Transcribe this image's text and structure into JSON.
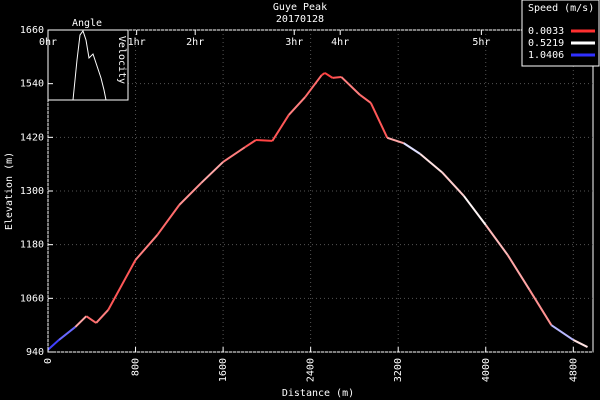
{
  "chart_data": {
    "type": "line",
    "title": "Guye Peak",
    "subtitle": "20170128",
    "x_label": "Distance (m)",
    "y_label": "Elevation (m)",
    "xlim": [
      0,
      4980
    ],
    "xticks": [
      0,
      800,
      1600,
      2400,
      3200,
      4000,
      4800
    ],
    "ylim": [
      940,
      1660
    ],
    "yticks": [
      940,
      1060,
      1180,
      1300,
      1420,
      1540,
      1660
    ],
    "grid": true,
    "time_ticks": [
      {
        "value": 0,
        "label": "0hr"
      },
      {
        "value": 810,
        "label": "1hr"
      },
      {
        "value": 1345,
        "label": "2hr"
      },
      {
        "value": 2250,
        "label": "3hr"
      },
      {
        "value": 2670,
        "label": "4hr"
      },
      {
        "value": 3960,
        "label": "5hr"
      }
    ],
    "inset": {
      "x_label": "Angle",
      "y_label": "Velocity"
    },
    "legend": {
      "title": "Speed (m/s)",
      "position": "top-right",
      "entries": [
        {
          "value": 0.0033,
          "color": "#ff3030"
        },
        {
          "value": 0.5219,
          "color": "#ffffff"
        },
        {
          "value": 1.0406,
          "color": "#3030ff"
        }
      ]
    },
    "series": [
      {
        "name": "Elevation",
        "x": [
          0,
          100,
          250,
          350,
          440,
          550,
          800,
          1000,
          1200,
          1400,
          1600,
          1800,
          1900,
          2050,
          2200,
          2350,
          2500,
          2530,
          2600,
          2680,
          2850,
          2950,
          3100,
          3250,
          3400,
          3600,
          3800,
          4000,
          4200,
          4400,
          4600,
          4800,
          4930
        ],
        "values": [
          945,
          967,
          996,
          1020,
          1005,
          1034,
          1146,
          1202,
          1269,
          1318,
          1365,
          1398,
          1414,
          1412,
          1470,
          1510,
          1559,
          1564,
          1553,
          1555,
          1515,
          1497,
          1419,
          1407,
          1383,
          1342,
          1289,
          1224,
          1157,
          1079,
          1000,
          967,
          951
        ],
        "speed": [
          1.0,
          0.9,
          0.3,
          0.15,
          0.2,
          0.1,
          0.2,
          0.15,
          0.25,
          0.3,
          0.2,
          0.1,
          0.05,
          0.1,
          0.2,
          0.15,
          0.05,
          0.05,
          0.1,
          0.2,
          0.15,
          0.1,
          0.3,
          0.6,
          0.45,
          0.4,
          0.5,
          0.35,
          0.3,
          0.25,
          0.7,
          0.45,
          0.6
        ]
      }
    ]
  }
}
